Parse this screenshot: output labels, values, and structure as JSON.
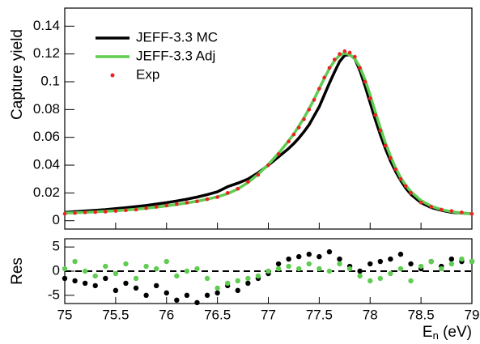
{
  "chart_data": [
    {
      "type": "line",
      "ylabel": "Capture yield",
      "xlim": [
        75,
        79
      ],
      "xticks": [
        75,
        75.5,
        76,
        76.5,
        77,
        77.5,
        78,
        78.5,
        79
      ],
      "xtick_labels": false,
      "ylim": [
        -0.006,
        0.153
      ],
      "yticks": [
        0,
        0.02,
        0.04,
        0.06,
        0.08,
        0.1,
        0.12,
        0.14
      ],
      "legend": "top-left",
      "x": [
        75.0,
        75.1,
        75.2,
        75.3,
        75.4,
        75.5,
        75.6,
        75.7,
        75.8,
        75.9,
        76.0,
        76.1,
        76.2,
        76.3,
        76.4,
        76.5,
        76.6,
        76.7,
        76.8,
        76.9,
        77.0,
        77.1,
        77.2,
        77.25,
        77.3,
        77.35,
        77.4,
        77.45,
        77.5,
        77.55,
        77.6,
        77.65,
        77.7,
        77.75,
        77.8,
        77.85,
        77.9,
        77.95,
        78.0,
        78.05,
        78.1,
        78.15,
        78.2,
        78.25,
        78.3,
        78.35,
        78.4,
        78.5,
        78.6,
        78.7,
        78.8,
        78.9,
        79.0
      ],
      "series": [
        {
          "name": "JEFF-3.3 MC",
          "color": "#000000",
          "mode": "line",
          "values": [
            0.006,
            0.0065,
            0.007,
            0.0075,
            0.008,
            0.0087,
            0.0094,
            0.0102,
            0.011,
            0.012,
            0.013,
            0.0142,
            0.0155,
            0.017,
            0.0188,
            0.0208,
            0.0245,
            0.027,
            0.03,
            0.0345,
            0.04,
            0.046,
            0.052,
            0.0555,
            0.0595,
            0.064,
            0.069,
            0.0755,
            0.082,
            0.0905,
            0.099,
            0.107,
            0.1145,
            0.119,
            0.1195,
            0.1165,
            0.108,
            0.097,
            0.085,
            0.073,
            0.062,
            0.052,
            0.043,
            0.0355,
            0.029,
            0.0235,
            0.019,
            0.013,
            0.0095,
            0.0075,
            0.006,
            0.0055,
            0.005
          ]
        },
        {
          "name": "JEFF-3.3 Adj",
          "color": "#5fcc52",
          "mode": "line",
          "values": [
            0.0055,
            0.0058,
            0.006,
            0.0064,
            0.0068,
            0.0072,
            0.0077,
            0.0083,
            0.009,
            0.0098,
            0.0107,
            0.0117,
            0.0128,
            0.014,
            0.0155,
            0.0172,
            0.0195,
            0.0228,
            0.0275,
            0.0335,
            0.0405,
            0.0485,
            0.0575,
            0.0625,
            0.068,
            0.074,
            0.0805,
            0.0875,
            0.095,
            0.1025,
            0.1095,
            0.115,
            0.119,
            0.1205,
            0.1195,
            0.1165,
            0.1105,
            0.1015,
            0.0905,
            0.0785,
            0.067,
            0.056,
            0.0465,
            0.038,
            0.031,
            0.0255,
            0.021,
            0.0145,
            0.0105,
            0.008,
            0.0065,
            0.0055,
            0.005
          ]
        },
        {
          "name": "Exp",
          "color": "#ee2222",
          "mode": "markers",
          "values": [
            0.005,
            0.0055,
            0.006,
            0.0062,
            0.0065,
            0.007,
            0.0075,
            0.008,
            0.009,
            0.01,
            0.011,
            0.012,
            0.013,
            0.014,
            0.0155,
            0.017,
            0.02,
            0.023,
            0.028,
            0.033,
            0.04,
            0.048,
            0.057,
            0.062,
            0.067,
            0.073,
            0.08,
            0.087,
            0.095,
            0.103,
            0.11,
            0.116,
            0.12,
            0.122,
            0.121,
            0.118,
            0.11,
            0.1,
            0.088,
            0.076,
            0.065,
            0.054,
            0.045,
            0.037,
            0.03,
            0.025,
            0.02,
            0.013,
            0.01,
            0.008,
            0.007,
            0.006,
            0.005
          ]
        }
      ]
    },
    {
      "type": "scatter",
      "ylabel": "Res",
      "xlabel": [
        "E",
        "n",
        " (eV)"
      ],
      "xlim": [
        75,
        79
      ],
      "xticks": [
        75,
        75.5,
        76,
        76.5,
        77,
        77.5,
        78,
        78.5,
        79
      ],
      "xtick_labels": true,
      "ylim": [
        -6.7,
        6.7
      ],
      "yticks": [
        -5,
        0,
        5
      ],
      "hline": 0,
      "x": [
        75.0,
        75.1,
        75.2,
        75.3,
        75.4,
        75.5,
        75.6,
        75.7,
        75.8,
        75.9,
        76.0,
        76.1,
        76.2,
        76.3,
        76.4,
        76.5,
        76.6,
        76.7,
        76.8,
        76.9,
        77.0,
        77.1,
        77.2,
        77.3,
        77.4,
        77.5,
        77.6,
        77.7,
        77.8,
        77.9,
        78.0,
        78.1,
        78.2,
        78.3,
        78.4,
        78.5,
        78.6,
        78.7,
        78.8,
        78.9,
        79.0
      ],
      "series": [
        {
          "color": "#000000",
          "mode": "markers",
          "values": [
            -1.5,
            -2,
            -2.5,
            -3,
            -1.5,
            -4,
            -2.5,
            -3.5,
            -5,
            -3,
            -4.5,
            -6,
            -5,
            -6.5,
            -5,
            -4.5,
            -3,
            -4,
            -2.5,
            -1.5,
            -0.5,
            1.5,
            2.5,
            3,
            3.5,
            3,
            4,
            2.5,
            1,
            0,
            1.5,
            2,
            2.5,
            3.5,
            1.5,
            0.5,
            2,
            1,
            2.5,
            2,
            2
          ]
        },
        {
          "color": "#5fcc52",
          "mode": "markers",
          "values": [
            0.5,
            2,
            0,
            -1,
            1,
            -0.5,
            1.5,
            -1.5,
            1,
            0.5,
            2,
            -1,
            0,
            0.5,
            -1.5,
            -3.5,
            -2.5,
            -2,
            -1.5,
            -1,
            0,
            0.5,
            1,
            0.5,
            1.5,
            0.5,
            0,
            1.5,
            0.5,
            -1,
            -2,
            -1.5,
            -0.5,
            0.5,
            -2,
            1,
            2,
            0.5,
            1.5,
            2.5,
            2
          ]
        }
      ]
    }
  ]
}
